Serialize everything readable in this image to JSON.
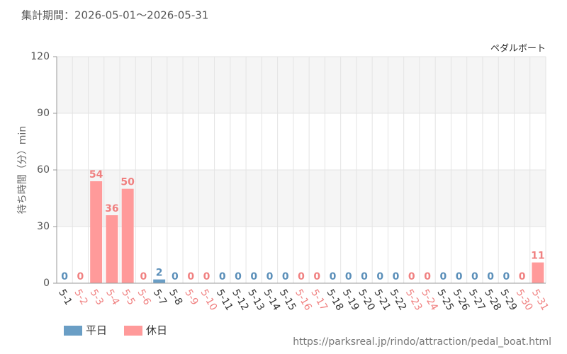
{
  "chart_data": {
    "type": "bar",
    "title": "集計期間：2026-05-01～2026-05-31",
    "annotation": "ペダルボート",
    "y_label": "待ち時間（分）min",
    "source": "https://parksreal.jp/rindo/attraction/pedal_boat.html",
    "categories": [
      "5-1",
      "5-2",
      "5-3",
      "5-4",
      "5-5",
      "5-6",
      "5-7",
      "5-8",
      "5-9",
      "5-10",
      "5-11",
      "5-12",
      "5-13",
      "5-14",
      "5-15",
      "5-16",
      "5-17",
      "5-18",
      "5-19",
      "5-20",
      "5-21",
      "5-22",
      "5-23",
      "5-24",
      "5-25",
      "5-26",
      "5-27",
      "5-28",
      "5-29",
      "5-30",
      "5-31"
    ],
    "series": [
      {
        "name": "平日",
        "color": "#6a9ec5",
        "label_color": "#5b8fb9",
        "values": [
          0,
          null,
          null,
          null,
          null,
          null,
          2,
          0,
          null,
          null,
          0,
          0,
          0,
          0,
          0,
          null,
          null,
          0,
          0,
          0,
          0,
          0,
          null,
          null,
          0,
          0,
          0,
          0,
          0,
          null,
          null
        ]
      },
      {
        "name": "休日",
        "color": "#ff9a9a",
        "label_color": "#f08080",
        "values": [
          null,
          0,
          54,
          36,
          50,
          0,
          null,
          null,
          0,
          0,
          null,
          null,
          null,
          null,
          null,
          0,
          0,
          null,
          null,
          null,
          null,
          null,
          0,
          0,
          null,
          null,
          null,
          null,
          null,
          0,
          11
        ]
      }
    ],
    "ylim": [
      0,
      120
    ],
    "yticks": [
      0,
      30,
      60,
      90,
      120
    ],
    "grid": true
  }
}
